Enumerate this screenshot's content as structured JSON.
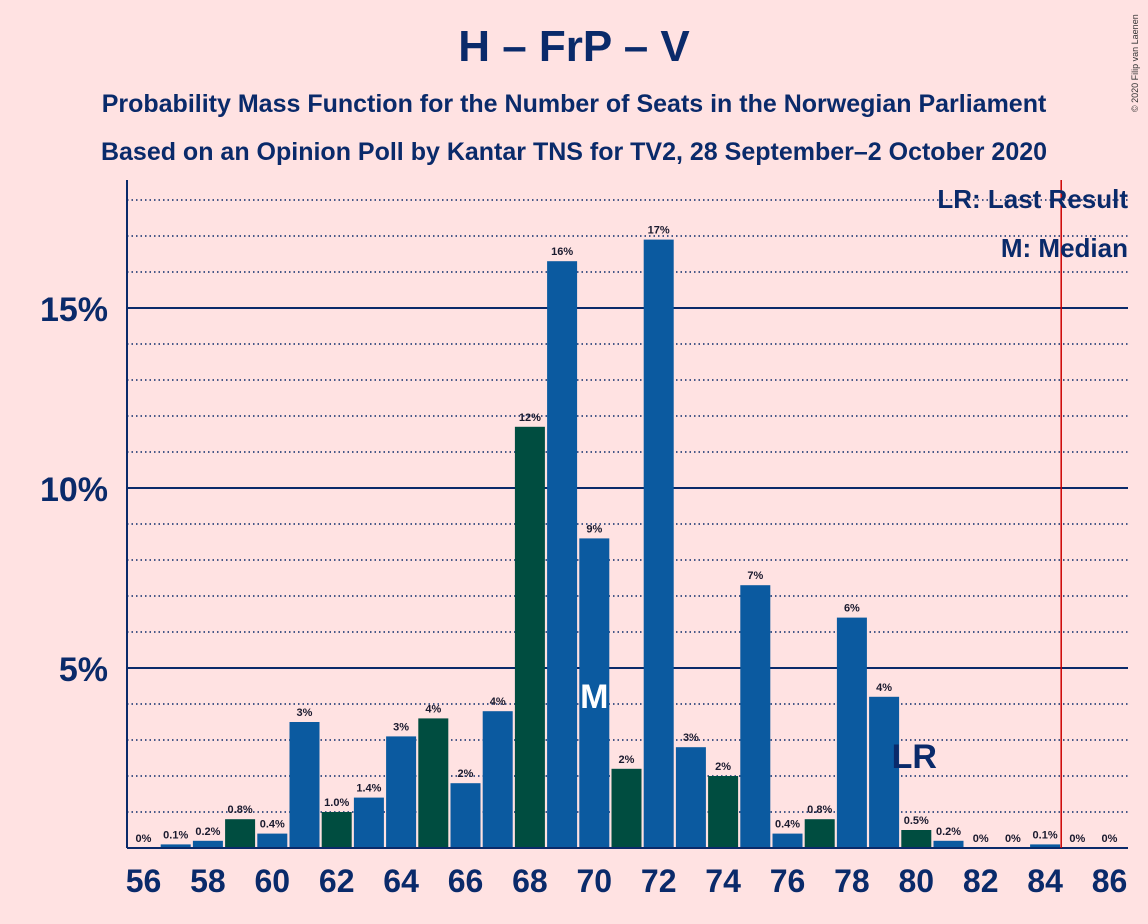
{
  "title": "H – FrP – V",
  "subtitle": "Probability Mass Function for the Number of Seats in the Norwegian Parliament",
  "subtitle2": "Based on an Opinion Poll by Kantar TNS for TV2, 28 September–2 October 2020",
  "copyright": "© 2020 Filip van Laenen",
  "legend": {
    "lr": "LR: Last Result",
    "median": "M: Median"
  },
  "colors": {
    "background": "#ffe2e2",
    "blue": "#0b5aa0",
    "green": "#004d40",
    "darkblue": "#0a2a6a",
    "last_result_line": "#cc0000"
  },
  "chart_data": {
    "type": "bar",
    "x": [
      56,
      57,
      58,
      59,
      60,
      61,
      62,
      63,
      64,
      65,
      66,
      67,
      68,
      69,
      70,
      71,
      72,
      73,
      74,
      75,
      76,
      77,
      78,
      79,
      80,
      81,
      82,
      83,
      84,
      85,
      86
    ],
    "values": [
      0,
      0.1,
      0.2,
      0.8,
      0.4,
      3.5,
      1.0,
      1.4,
      3.1,
      3.6,
      1.8,
      3.8,
      11.7,
      16.3,
      8.6,
      2.2,
      16.9,
      2.8,
      2.0,
      7.3,
      0.4,
      0.8,
      6.4,
      4.2,
      0.5,
      0.2,
      0,
      0,
      0.1,
      0,
      0
    ],
    "data_labels": [
      "0%",
      "0.1%",
      "0.2%",
      "0.8%",
      "0.4%",
      "3%",
      "1.0%",
      "1.4%",
      "3%",
      "4%",
      "2%",
      "4%",
      "12%",
      "16%",
      "9%",
      "2%",
      "17%",
      "3%",
      "2%",
      "7%",
      "0.4%",
      "0.8%",
      "6%",
      "4%",
      "0.5%",
      "0.2%",
      "0%",
      "0%",
      "0.1%",
      "0%",
      "0%"
    ],
    "bar_colors": [
      "blue",
      "blue",
      "blue",
      "green",
      "blue",
      "blue",
      "green",
      "blue",
      "blue",
      "green",
      "blue",
      "blue",
      "green",
      "blue",
      "blue",
      "green",
      "blue",
      "blue",
      "green",
      "blue",
      "blue",
      "green",
      "blue",
      "blue",
      "green",
      "blue",
      "blue",
      "green",
      "blue",
      "blue",
      "green"
    ],
    "x_tick_labels": [
      "56",
      "58",
      "60",
      "62",
      "64",
      "66",
      "68",
      "70",
      "72",
      "74",
      "76",
      "78",
      "80",
      "82",
      "84",
      "86"
    ],
    "y_ticks": [
      {
        "value": 5,
        "label": "5%"
      },
      {
        "value": 10,
        "label": "10%"
      },
      {
        "value": 15,
        "label": "15%"
      }
    ],
    "ylim": [
      0,
      18.5
    ],
    "minor_grid_step": 1,
    "median": {
      "x": 70,
      "label": "M"
    },
    "last_result": {
      "x": 80,
      "label": "LR"
    },
    "majority_line_x": 85
  }
}
